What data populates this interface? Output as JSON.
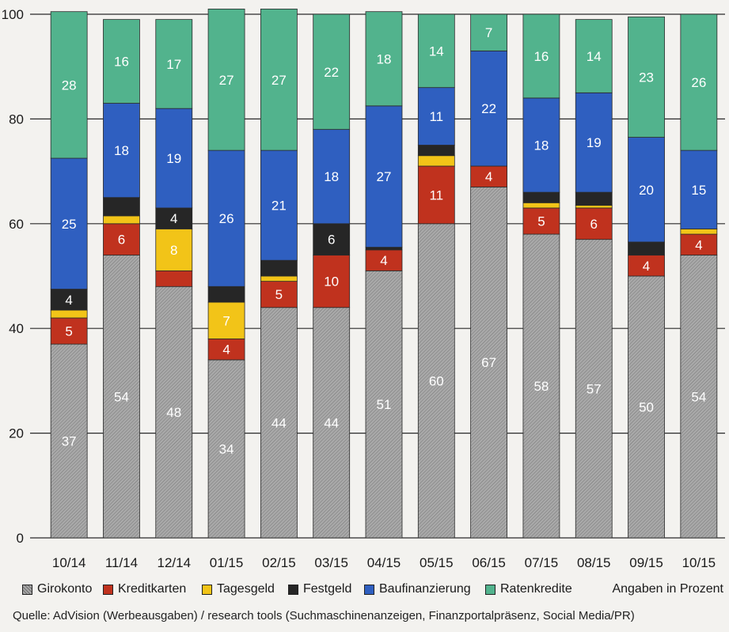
{
  "chart_data": {
    "type": "bar",
    "stacked": true,
    "categories": [
      "10/14",
      "11/14",
      "12/14",
      "01/15",
      "02/15",
      "03/15",
      "04/15",
      "05/15",
      "06/15",
      "07/15",
      "08/15",
      "09/15",
      "10/15"
    ],
    "series": [
      {
        "name": "Girokonto",
        "color": "#a4a4a4",
        "hatched": true,
        "values": [
          37,
          54,
          48,
          34,
          44,
          44,
          51,
          60,
          67,
          58,
          57,
          50,
          54
        ],
        "labels": [
          "37",
          "54",
          "48",
          "34",
          "44",
          "44",
          "51",
          "60",
          "67",
          "58",
          "57",
          "50",
          "54"
        ]
      },
      {
        "name": "Kreditkarten",
        "color": "#c0321e",
        "values": [
          5,
          6,
          3,
          4,
          5,
          10,
          4,
          11,
          4,
          5,
          6,
          4,
          4
        ],
        "labels": [
          "5",
          "6",
          "",
          "4",
          "5",
          "10",
          "4",
          "11",
          "4",
          "5",
          "6",
          "4",
          "4"
        ]
      },
      {
        "name": "Tagesgeld",
        "color": "#f2c418",
        "values": [
          1.5,
          1.5,
          8,
          7,
          1,
          0,
          0,
          2,
          0,
          1,
          0.5,
          0,
          1
        ],
        "labels": [
          "",
          "",
          "8",
          "7",
          "",
          "",
          "",
          "",
          "",
          "",
          "",
          "",
          ""
        ]
      },
      {
        "name": "Festgeld",
        "color": "#262626",
        "values": [
          4,
          3.5,
          4,
          3,
          3,
          6,
          0.5,
          2,
          0,
          2,
          2.5,
          2.5,
          0
        ],
        "labels": [
          "4",
          "",
          "4",
          "",
          "",
          "6",
          "",
          "",
          "",
          "",
          "",
          "",
          ""
        ]
      },
      {
        "name": "Baufinanzierung",
        "color": "#2f5fc0",
        "values": [
          25,
          18,
          19,
          26,
          21,
          18,
          27,
          11,
          22,
          18,
          19,
          20,
          15
        ],
        "labels": [
          "25",
          "18",
          "19",
          "26",
          "21",
          "18",
          "27",
          "11",
          "22",
          "18",
          "19",
          "20",
          "15"
        ]
      },
      {
        "name": "Ratenkredite",
        "color": "#52b38d",
        "values": [
          28,
          16,
          17,
          27,
          27,
          22,
          18,
          14,
          7,
          16,
          14,
          23,
          26
        ],
        "labels": [
          "28",
          "16",
          "17",
          "27",
          "27",
          "22",
          "18",
          "14",
          "7",
          "16",
          "14",
          "23",
          "26"
        ]
      }
    ],
    "ylim": [
      0,
      100
    ],
    "yticks": [
      0,
      20,
      40,
      60,
      80,
      100
    ],
    "grid": true,
    "legend": "bottom"
  },
  "unit_note": "Angaben in Prozent",
  "source": "Quelle: AdVision (Werbeausgaben) / research tools (Suchmaschinenanzeigen, Finanzportalpräsenz, Social Media/PR)"
}
